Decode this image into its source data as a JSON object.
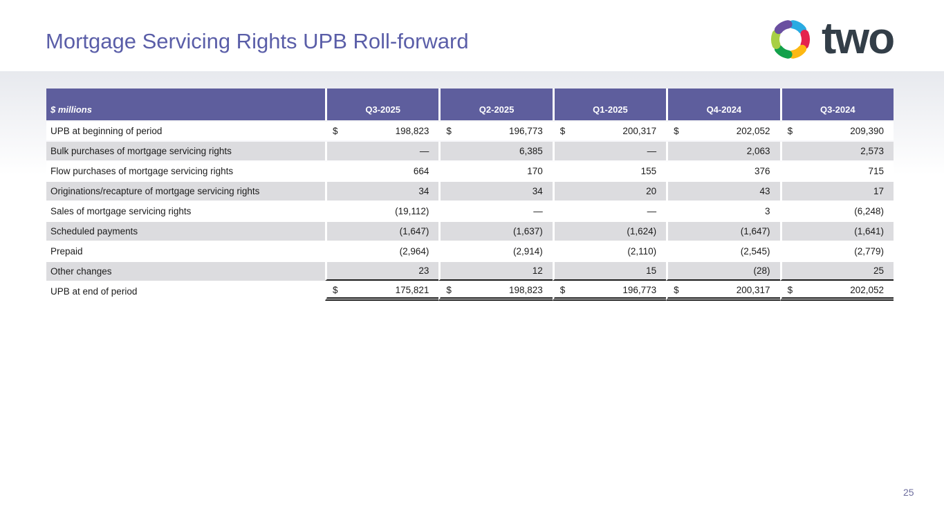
{
  "slide": {
    "title": "Mortgage Servicing Rights UPB Roll-forward",
    "page_number": "25",
    "logo_text": "two"
  },
  "table": {
    "unit_label": "$ millions",
    "currency_symbol": "$",
    "columns": [
      "Q3-2025",
      "Q2-2025",
      "Q1-2025",
      "Q4-2024",
      "Q3-2024"
    ],
    "rows": [
      {
        "label": "UPB at beginning of period",
        "dollar": true,
        "values": [
          "198,823",
          "196,773",
          "200,317",
          "202,052",
          "209,390"
        ]
      },
      {
        "label": "Bulk purchases of mortgage servicing rights",
        "values": [
          "—",
          "6,385",
          "—",
          "2,063",
          "2,573"
        ]
      },
      {
        "label": "Flow purchases of mortgage servicing rights",
        "values": [
          "664",
          "170",
          "155",
          "376",
          "715"
        ]
      },
      {
        "label": "Originations/recapture of mortgage servicing rights",
        "values": [
          "34",
          "34",
          "20",
          "43",
          "17"
        ]
      },
      {
        "label": "Sales of mortgage servicing rights",
        "values": [
          "(19,112)",
          "—",
          "—",
          "3",
          "(6,248)"
        ]
      },
      {
        "label": "Scheduled payments",
        "values": [
          "(1,647)",
          "(1,637)",
          "(1,624)",
          "(1,647)",
          "(1,641)"
        ]
      },
      {
        "label": "Prepaid",
        "values": [
          "(2,964)",
          "(2,914)",
          "(2,110)",
          "(2,545)",
          "(2,779)"
        ]
      },
      {
        "label": "Other changes",
        "values": [
          "23",
          "12",
          "15",
          "(28)",
          "25"
        ]
      },
      {
        "label": "UPB at end of period",
        "dollar": true,
        "total": true,
        "values": [
          "175,821",
          "198,823",
          "196,773",
          "200,317",
          "202,052"
        ]
      }
    ]
  },
  "colors": {
    "header_purple": "#5e5e9d",
    "stripe_gray": "#dcdcdf",
    "title_purple": "#5a5ea8",
    "logo_navy": "#333e48",
    "text": "#1b1b1b",
    "band_gray": "#e7e9ee",
    "logo_segments": {
      "purple": "#6a4fa0",
      "cyan": "#29abe2",
      "red": "#e5234e",
      "yellow": "#fdb813",
      "green": "#13a14b",
      "lime": "#a8cf45"
    }
  }
}
